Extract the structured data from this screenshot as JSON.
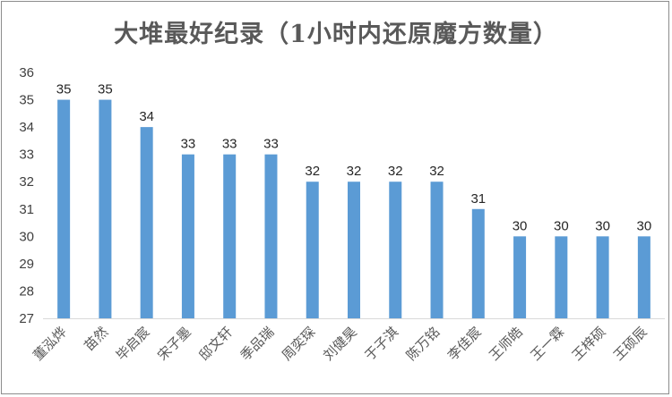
{
  "chart_data": {
    "type": "bar",
    "title": "大堆最好纪录（1小时内还原魔方数量）",
    "categories": [
      "董泓烨",
      "苗然",
      "毕启宸",
      "宋子墨",
      "邸文轩",
      "季品瑞",
      "周奕琛",
      "刘健昊",
      "于子淇",
      "陈万铭",
      "李佳宸",
      "王师皓",
      "王一霖",
      "王梓硕",
      "王硕辰"
    ],
    "values": [
      35,
      35,
      34,
      33,
      33,
      33,
      32,
      32,
      32,
      32,
      31,
      30,
      30,
      30,
      30
    ],
    "ylim": [
      27,
      36
    ],
    "yticks": [
      27,
      28,
      29,
      30,
      31,
      32,
      33,
      34,
      35,
      36
    ],
    "grid": false,
    "legend": "none",
    "colors": {
      "bar": "#5b9bd5",
      "axis": "#d9d9d9",
      "title": "#595959"
    }
  }
}
